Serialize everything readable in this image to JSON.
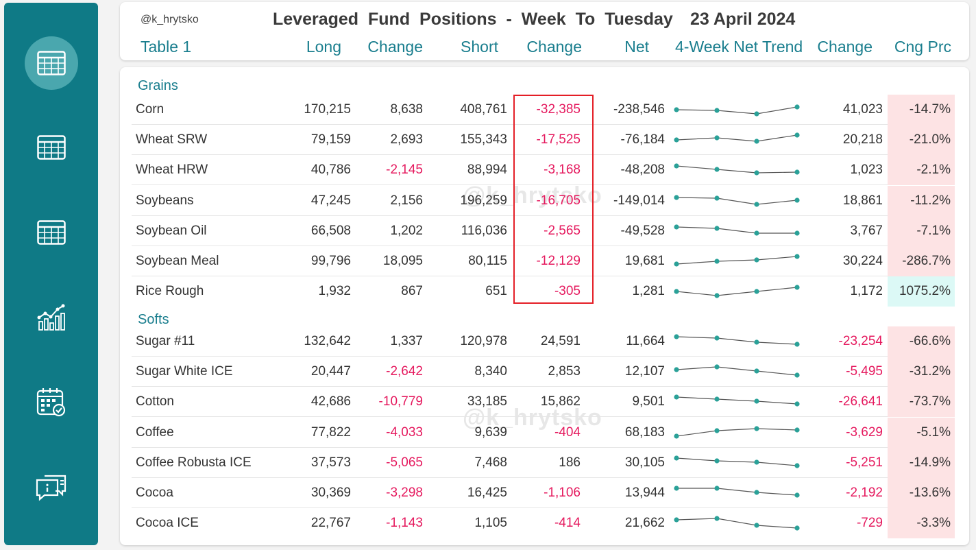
{
  "header": {
    "handle": "@k_hrytsko",
    "title": "Leveraged Fund Positions - Week To Tuesday",
    "date": "23 April 2024",
    "table_label": "Table 1",
    "columns": {
      "long": "Long",
      "change1": "Change",
      "short": "Short",
      "change2": "Change",
      "net": "Net",
      "trend": "4-Week Net Trend",
      "change3": "Change",
      "cng_prc": "Cng Prc"
    }
  },
  "watermark": "@k_hrytsko",
  "sidebar": {
    "items": [
      {
        "icon": "table-icon",
        "active": true
      },
      {
        "icon": "table-icon",
        "active": false
      },
      {
        "icon": "table-icon",
        "active": false
      },
      {
        "icon": "bar-chart-icon",
        "active": false
      },
      {
        "icon": "calendar-check-icon",
        "active": false
      },
      {
        "icon": "chat-info-icon",
        "active": false
      }
    ]
  },
  "colors": {
    "sidebar": "#0f7a86",
    "accent": "#1a7e8e",
    "negative": "#e5195e",
    "neg_bg": "#fde3e4",
    "pos_bg": "#dcf9f6",
    "spark": "#2aa198",
    "highlight_box": "#e41e26"
  },
  "groups": [
    {
      "name": "Grains",
      "rows": [
        {
          "name": "Corn",
          "long": "170,215",
          "change1": "8,638",
          "short": "408,761",
          "change2": "-32,385",
          "net": "-238,546",
          "change3": "41,023",
          "cng_prc": "-14.7%",
          "trend": [
            0.8,
            0.75,
            0.5,
            1.0
          ]
        },
        {
          "name": "Wheat SRW",
          "long": "79,159",
          "change1": "2,693",
          "short": "155,343",
          "change2": "-17,525",
          "net": "-76,184",
          "change3": "20,218",
          "cng_prc": "-21.0%",
          "trend": [
            0.8,
            0.95,
            0.7,
            1.15
          ]
        },
        {
          "name": "Wheat HRW",
          "long": "40,786",
          "change1": "-2,145",
          "short": "88,994",
          "change2": "-3,168",
          "net": "-48,208",
          "change3": "1,023",
          "cng_prc": "-2.1%",
          "trend": [
            1.1,
            0.85,
            0.6,
            0.65
          ]
        },
        {
          "name": "Soybeans",
          "long": "47,245",
          "change1": "2,156",
          "short": "196,259",
          "change2": "-16,705",
          "net": "-149,014",
          "change3": "18,861",
          "cng_prc": "-11.2%",
          "trend": [
            1.05,
            1.0,
            0.55,
            0.85
          ]
        },
        {
          "name": "Soybean Oil",
          "long": "66,508",
          "change1": "1,202",
          "short": "116,036",
          "change2": "-2,565",
          "net": "-49,528",
          "change3": "3,767",
          "cng_prc": "-7.1%",
          "trend": [
            1.1,
            1.0,
            0.65,
            0.65
          ]
        },
        {
          "name": "Soybean Meal",
          "long": "99,796",
          "change1": "18,095",
          "short": "80,115",
          "change2": "-12,129",
          "net": "19,681",
          "change3": "30,224",
          "cng_prc": "-286.7%",
          "trend": [
            0.6,
            0.8,
            0.9,
            1.15
          ]
        },
        {
          "name": "Rice Rough",
          "long": "1,932",
          "change1": "867",
          "short": "651",
          "change2": "-305",
          "net": "1,281",
          "change3": "1,172",
          "cng_prc": "1075.2%",
          "trend": [
            0.8,
            0.5,
            0.8,
            1.1
          ]
        }
      ]
    },
    {
      "name": "Softs",
      "rows": [
        {
          "name": "Sugar #11",
          "long": "132,642",
          "change1": "1,337",
          "short": "120,978",
          "change2": "24,591",
          "net": "11,664",
          "change3": "-23,254",
          "cng_prc": "-66.6%",
          "trend": [
            1.15,
            1.05,
            0.75,
            0.6
          ]
        },
        {
          "name": "Sugar White ICE",
          "long": "20,447",
          "change1": "-2,642",
          "short": "8,340",
          "change2": "2,853",
          "net": "12,107",
          "change3": "-5,495",
          "cng_prc": "-31.2%",
          "trend": [
            0.95,
            1.15,
            0.85,
            0.55
          ]
        },
        {
          "name": "Cotton",
          "long": "42,686",
          "change1": "-10,779",
          "short": "33,185",
          "change2": "15,862",
          "net": "9,501",
          "change3": "-26,641",
          "cng_prc": "-73.7%",
          "trend": [
            1.15,
            1.0,
            0.85,
            0.65
          ]
        },
        {
          "name": "Coffee",
          "long": "77,822",
          "change1": "-4,033",
          "short": "9,639",
          "change2": "-404",
          "net": "68,183",
          "change3": "-3,629",
          "cng_prc": "-5.1%",
          "trend": [
            0.55,
            0.95,
            1.1,
            1.0
          ]
        },
        {
          "name": "Coffee Robusta ICE",
          "long": "37,573",
          "change1": "-5,065",
          "short": "7,468",
          "change2": "186",
          "net": "30,105",
          "change3": "-5,251",
          "cng_prc": "-14.9%",
          "trend": [
            1.15,
            0.95,
            0.85,
            0.6
          ]
        },
        {
          "name": "Cocoa",
          "long": "30,369",
          "change1": "-3,298",
          "short": "16,425",
          "change2": "-1,106",
          "net": "13,944",
          "change3": "-2,192",
          "cng_prc": "-13.6%",
          "trend": [
            1.15,
            1.15,
            0.85,
            0.65
          ]
        },
        {
          "name": "Cocoa ICE",
          "long": "22,767",
          "change1": "-1,143",
          "short": "1,105",
          "change2": "-414",
          "net": "21,662",
          "change3": "-729",
          "cng_prc": "-3.3%",
          "trend": [
            1.05,
            1.15,
            0.65,
            0.45
          ]
        }
      ]
    }
  ]
}
